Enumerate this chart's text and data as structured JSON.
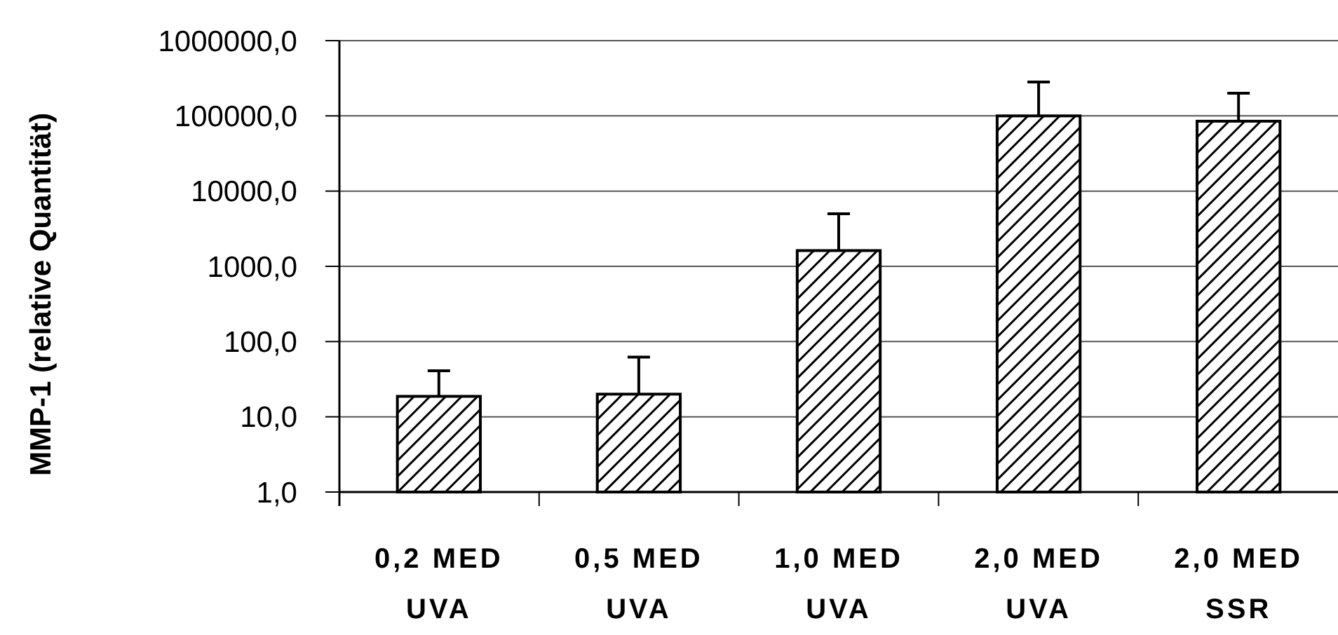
{
  "chart_data": {
    "type": "bar",
    "ylabel": "MMP-1 (relative Quantität)",
    "categories": [
      "0,2 MED\nUVA",
      "0,5 MED\nUVA",
      "1,0 MED\nUVA",
      "2,0 MED\nUVA",
      "2,0 MED\nSSR"
    ],
    "values": [
      18.7,
      20,
      1620,
      100000,
      85000
    ],
    "errors": [
      [
        18.7,
        41
      ],
      [
        20,
        62
      ],
      [
        1620,
        5000
      ],
      [
        100000,
        282000
      ],
      [
        85000,
        200000
      ]
    ],
    "color": "#000000",
    "log": true,
    "ylim": [
      1,
      1000000
    ],
    "yticks": [
      {
        "value": 1,
        "label": "1,0"
      },
      {
        "value": 10,
        "label": "10,0"
      },
      {
        "value": 100,
        "label": "100,0"
      },
      {
        "value": 1000,
        "label": "1000,0"
      },
      {
        "value": 10000,
        "label": "10000,0"
      },
      {
        "value": 100000,
        "label": "100000,0"
      },
      {
        "value": 1000000,
        "label": "1000000,0"
      }
    ],
    "grid": "y"
  }
}
